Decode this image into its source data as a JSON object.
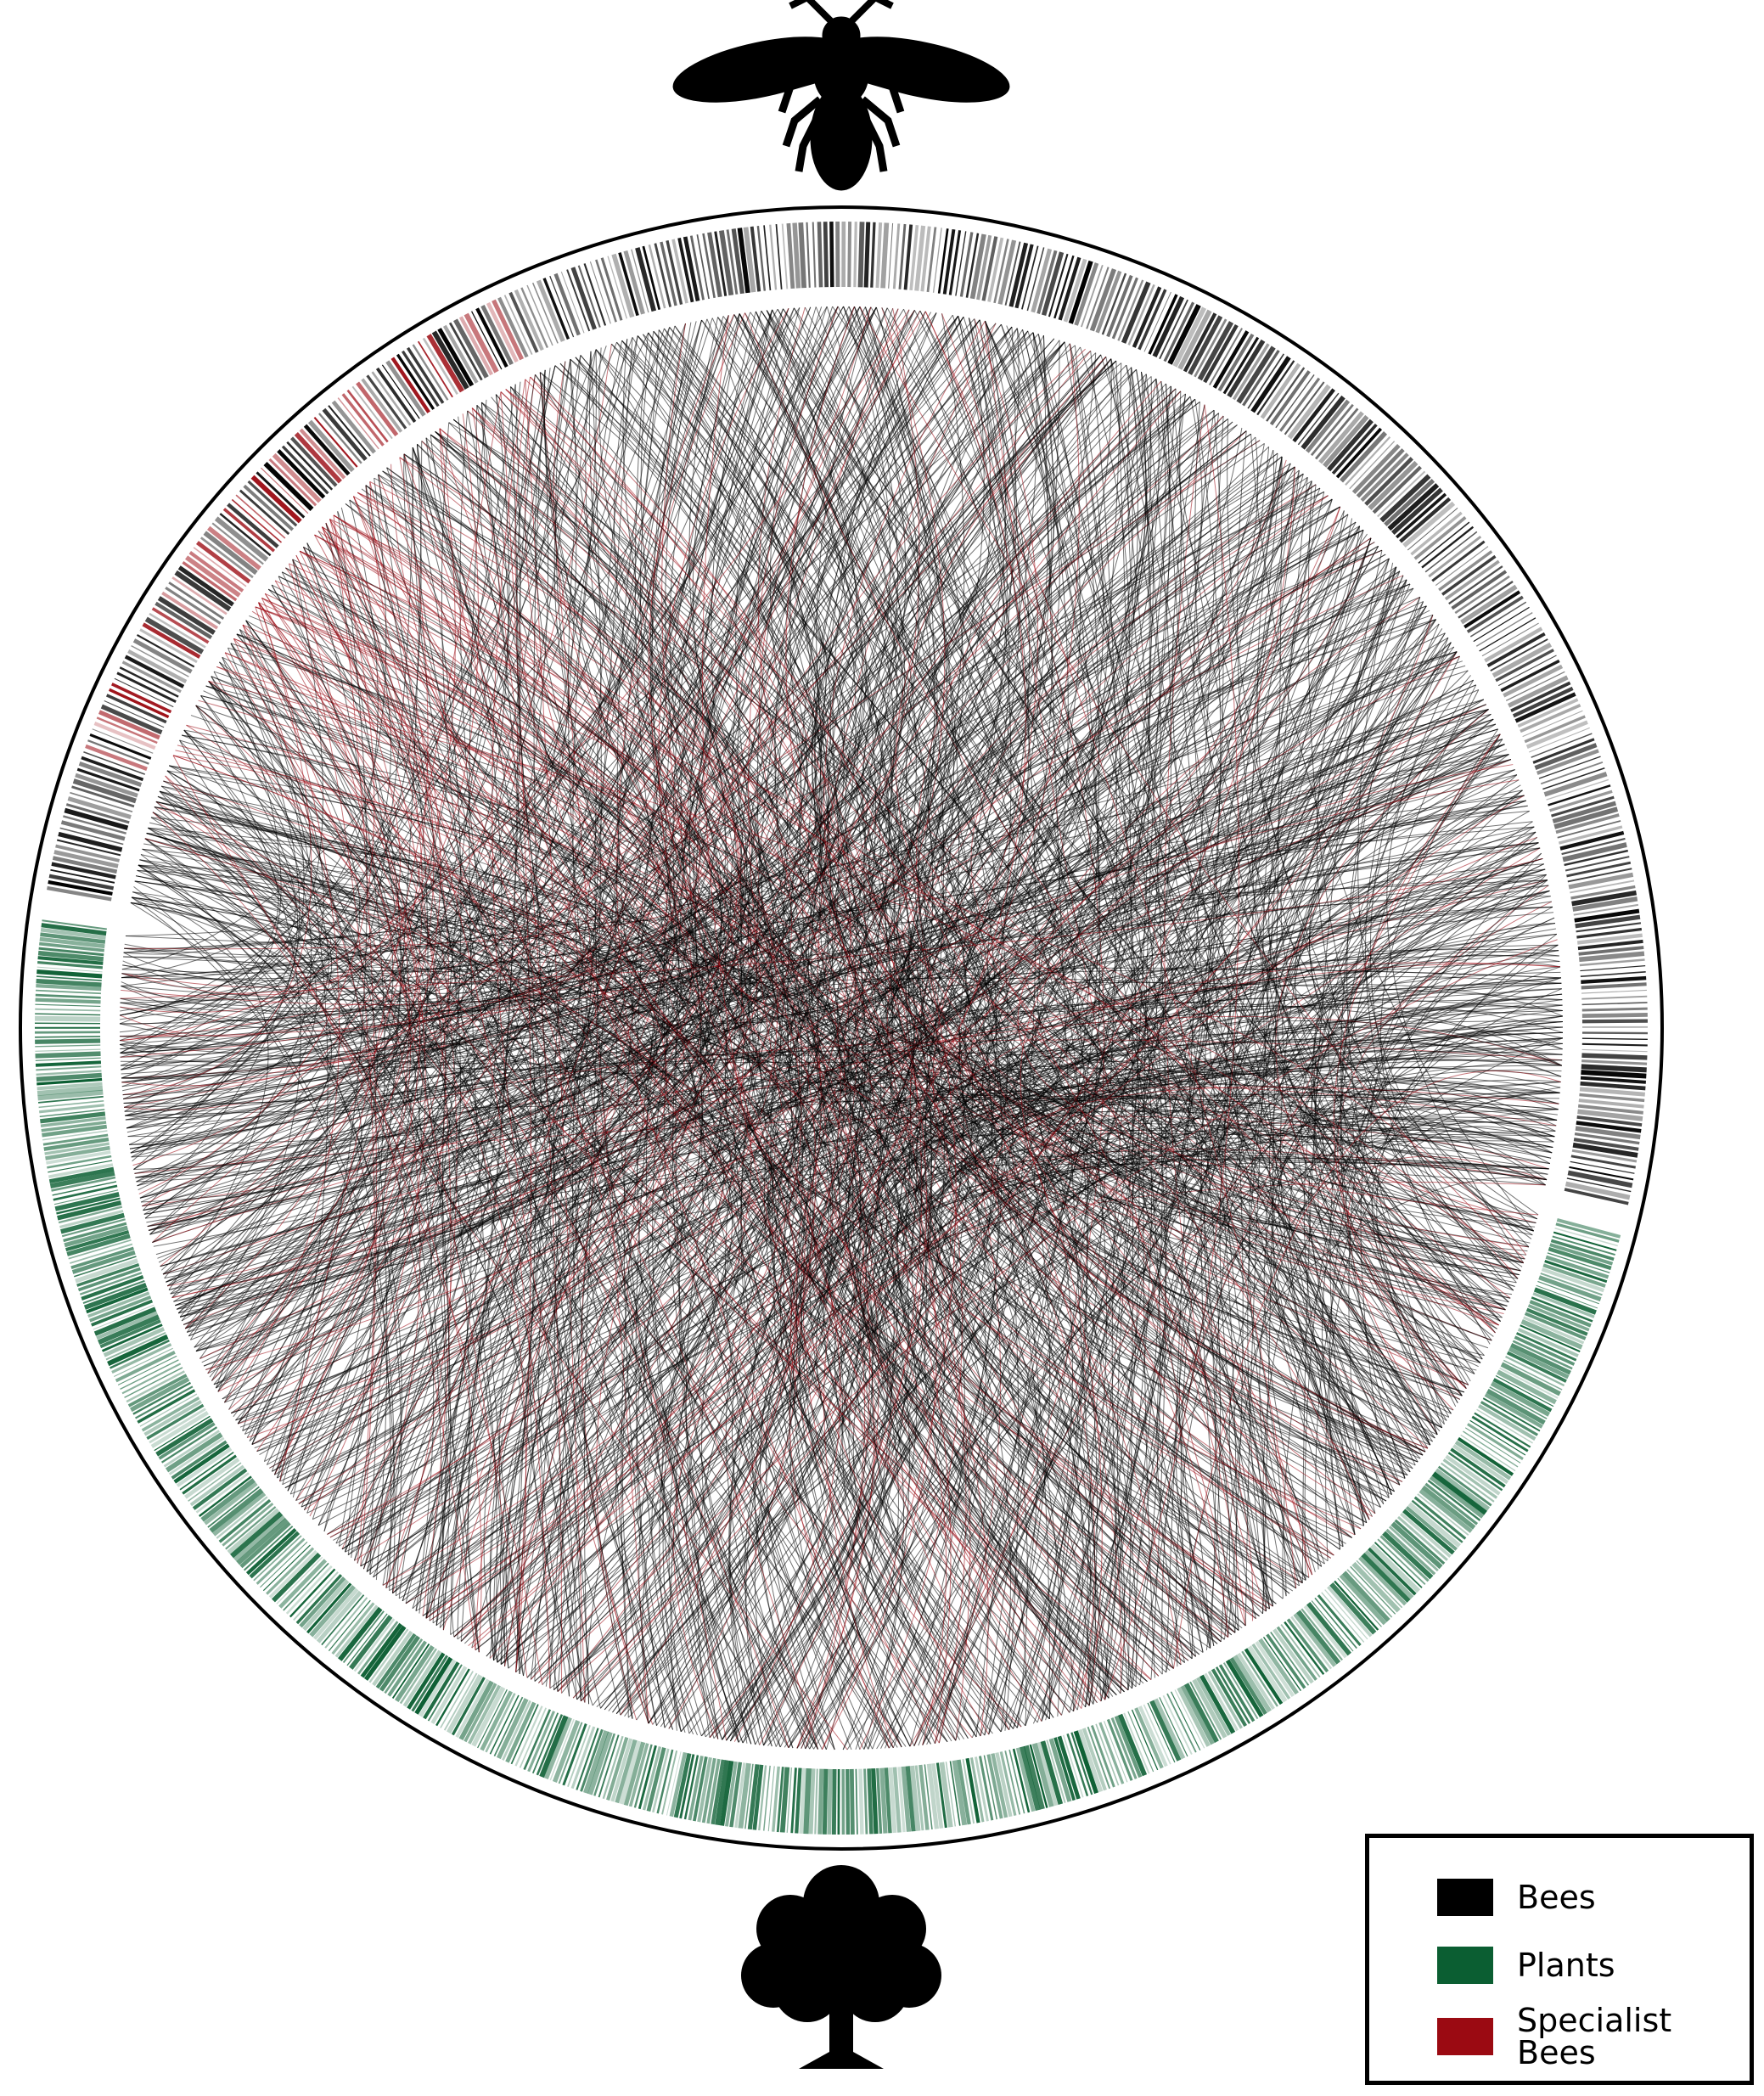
{
  "legend": {
    "items": [
      {
        "label": "Bees",
        "color": "#000000"
      },
      {
        "label": "Plants",
        "color": "#0b5e32"
      },
      {
        "label": "Specialist Bees",
        "color": "#9b0a12"
      }
    ]
  }
}
